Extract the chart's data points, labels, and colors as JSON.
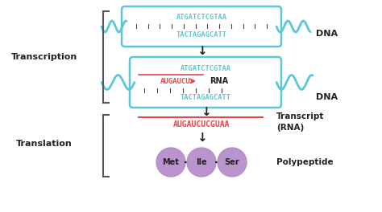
{
  "bg_color": "#ffffff",
  "cyan_color": "#5bc8d4",
  "red_color": "#e8474a",
  "pink_color": "#b388c8",
  "black_color": "#222222",
  "dna_seq_top": "ATGATCTCGTAA",
  "dna_seq_bottom": "TACTAGAGCATT",
  "rna_seq": "AUGAUCU",
  "rna_label": "RNA",
  "dna_label": "DNA",
  "transcript_seq": "AUGAUCUCGUAA",
  "transcript_label": "Transcript\n(RNA)",
  "polypeptide_label": "Polypeptide",
  "amino_acids": [
    "Met",
    "Ile",
    "Ser"
  ],
  "transcription_label": "Transcription",
  "translation_label": "Translation",
  "arrow_down": "↓"
}
